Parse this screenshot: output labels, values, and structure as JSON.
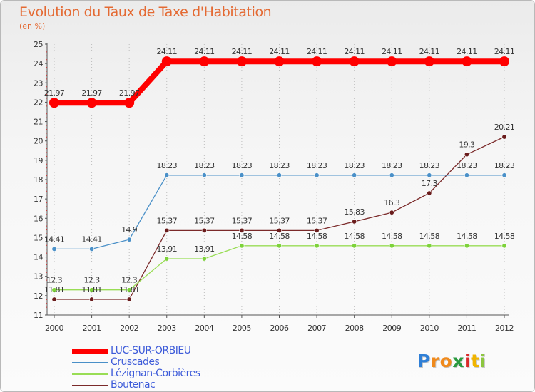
{
  "chart_data": {
    "type": "line",
    "title": "Evolution du Taux de Taxe d'Habitation",
    "subtitle": "(en %)",
    "x": [
      "2000",
      "2001",
      "2002",
      "2003",
      "2004",
      "2005",
      "2006",
      "2007",
      "2008",
      "2009",
      "2010",
      "2011",
      "2012"
    ],
    "ylim": [
      11,
      25
    ],
    "yticks": [
      "11",
      "12",
      "13",
      "14",
      "15",
      "16",
      "17",
      "18",
      "19",
      "20",
      "21",
      "22",
      "23",
      "24",
      "25"
    ],
    "grid": "vertical dotted",
    "series": [
      {
        "name": "LUC-SUR-ORBIEU",
        "color": "#ff0000",
        "values": [
          21.97,
          21.97,
          21.97,
          24.11,
          24.11,
          24.11,
          24.11,
          24.11,
          24.11,
          24.11,
          24.11,
          24.11,
          24.11
        ],
        "labels": [
          "21.97",
          "21.97",
          "21.97",
          "24.11",
          "24.11",
          "24.11",
          "24.11",
          "24.11",
          "24.11",
          "24.11",
          "24.11",
          "24.11",
          "24.11"
        ]
      },
      {
        "name": "Cruscades",
        "color": "#4a90c8",
        "values": [
          14.41,
          14.41,
          14.9,
          18.23,
          18.23,
          18.23,
          18.23,
          18.23,
          18.23,
          18.23,
          18.23,
          18.23,
          18.23
        ],
        "labels": [
          "14.41",
          "14.41",
          "14.9",
          "18.23",
          "18.23",
          "18.23",
          "18.23",
          "18.23",
          "18.23",
          "18.23",
          "18.23",
          "18.23",
          "18.23"
        ]
      },
      {
        "name": "Lézignan-Corbières",
        "color": "#99dd55",
        "values": [
          12.3,
          12.3,
          12.3,
          13.91,
          13.91,
          14.58,
          14.58,
          14.58,
          14.58,
          14.58,
          14.58,
          14.58,
          14.58
        ],
        "labels": [
          "12.3",
          "12.3",
          "12.3",
          "13.91",
          "13.91",
          "14.58",
          "14.58",
          "14.58",
          "14.58",
          "14.58",
          "14.58",
          "14.58",
          "14.58"
        ]
      },
      {
        "name": "Boutenac",
        "color": "#7b2a2a",
        "values": [
          11.81,
          11.81,
          11.81,
          15.37,
          15.37,
          15.37,
          15.37,
          15.37,
          15.83,
          16.3,
          17.3,
          19.3,
          20.21
        ],
        "labels": [
          "11.81",
          "11.81",
          "11.81",
          "15.37",
          "15.37",
          "15.37",
          "15.37",
          "15.37",
          "15.83",
          "16.3",
          "17.3",
          "19.3",
          "20.21"
        ]
      }
    ]
  },
  "logo": {
    "letters": [
      "P",
      "r",
      "o",
      "x",
      "i",
      "t",
      "i"
    ],
    "colors": [
      "#2f7fd6",
      "#f08a1c",
      "#f08a1c",
      "#2a9a3f",
      "#d92a2a",
      "#f0b400",
      "#8cc63f"
    ]
  }
}
